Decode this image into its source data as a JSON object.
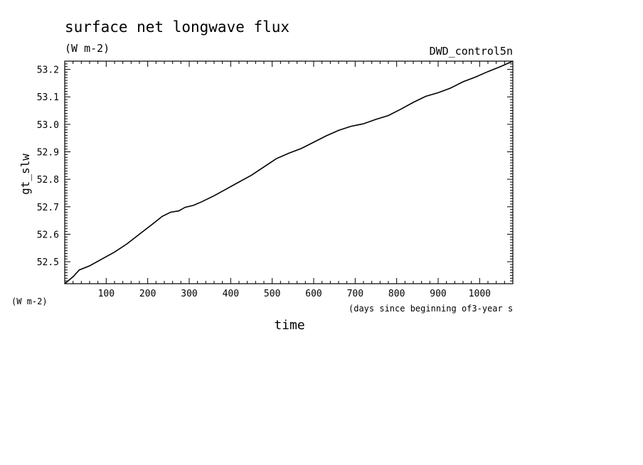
{
  "chart_data": {
    "type": "line",
    "title": "surface net longwave flux",
    "units": "(W m-2)",
    "run_label": "DWD_control5n",
    "ylabel": "gt_slw",
    "y_units_corner": "(W m-2)",
    "xlabel": "time",
    "x_units": "(days since beginning of3-year s",
    "xlim": [
      0,
      1080
    ],
    "ylim": [
      52.42,
      53.23
    ],
    "xticks": [
      100,
      200,
      300,
      400,
      500,
      600,
      700,
      800,
      900,
      1000
    ],
    "xtick_labels": [
      "100",
      "200",
      "300",
      "400",
      "500",
      "600",
      "700",
      "800",
      "900",
      "1000"
    ],
    "yticks": [
      52.5,
      52.6,
      52.7,
      52.8,
      52.9,
      53.0,
      53.1,
      53.2
    ],
    "ytick_labels": [
      "52.5",
      "52.6",
      "52.7",
      "52.8",
      "52.9",
      "53.0",
      "53.1",
      "53.2"
    ],
    "grid": false,
    "series": [
      {
        "color": "#000000",
        "x": [
          0,
          20,
          35,
          60,
          90,
          120,
          150,
          180,
          210,
          235,
          255,
          275,
          290,
          310,
          330,
          360,
          390,
          420,
          450,
          480,
          510,
          540,
          570,
          600,
          630,
          660,
          690,
          720,
          750,
          780,
          810,
          840,
          870,
          900,
          930,
          960,
          990,
          1020,
          1050,
          1080
        ],
        "y": [
          52.42,
          52.445,
          52.47,
          52.485,
          52.51,
          52.535,
          52.565,
          52.6,
          52.635,
          52.665,
          52.68,
          52.685,
          52.698,
          52.705,
          52.718,
          52.74,
          52.765,
          52.79,
          52.815,
          52.845,
          52.875,
          52.895,
          52.912,
          52.935,
          52.958,
          52.978,
          52.993,
          53.002,
          53.018,
          53.032,
          53.055,
          53.08,
          53.102,
          53.115,
          53.132,
          53.155,
          53.172,
          53.192,
          53.21,
          53.23
        ]
      }
    ]
  }
}
